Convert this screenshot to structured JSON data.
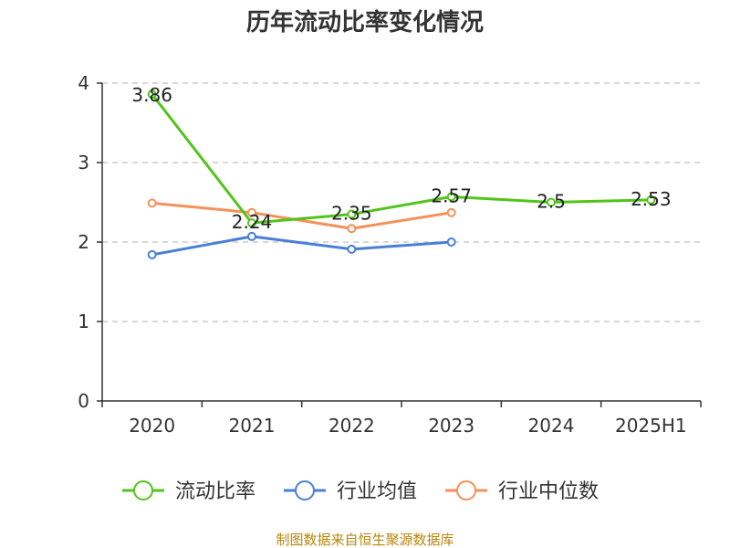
{
  "chart_data": {
    "type": "line",
    "title": "历年流动比率变化情况",
    "categories": [
      "2020",
      "2021",
      "2022",
      "2023",
      "2024",
      "2025H1"
    ],
    "ylim": [
      0,
      4
    ],
    "yticks": [
      "0",
      "1",
      "2",
      "3",
      "4"
    ],
    "grid": true,
    "legend": "bottom",
    "series": [
      {
        "name": "流动比率",
        "color": "#52c41a",
        "values": [
          3.86,
          2.24,
          2.35,
          2.57,
          2.5,
          2.53
        ],
        "labels": [
          "3.86",
          "2.24",
          "2.35",
          "2.57",
          "2.5",
          "2.53"
        ]
      },
      {
        "name": "行业均值",
        "color": "#4a7fd6",
        "values": [
          1.84,
          2.07,
          1.91,
          2.0,
          null,
          null
        ]
      },
      {
        "name": "行业中位数",
        "color": "#f4915a",
        "values": [
          2.49,
          2.37,
          2.17,
          2.37,
          null,
          null
        ]
      }
    ]
  },
  "source": "制图数据来自恒生聚源数据库"
}
